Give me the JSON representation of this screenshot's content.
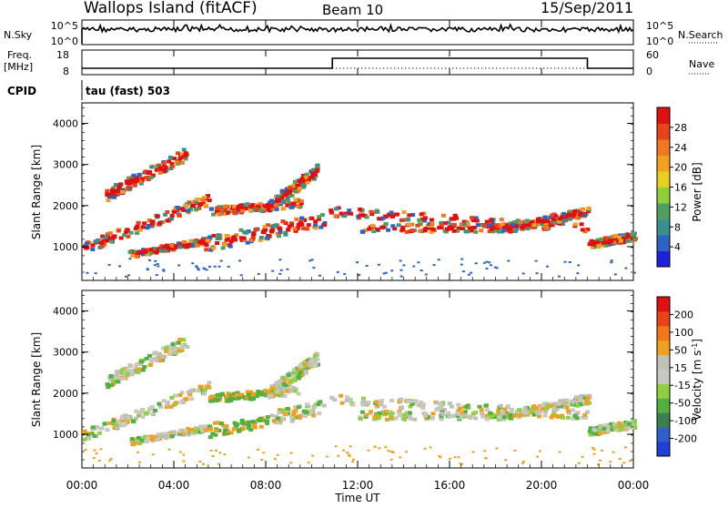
{
  "header": {
    "title": "Wallops Island (fitACF)",
    "beam": "Beam 10",
    "date": "15/Sep/2011"
  },
  "top_panels": {
    "nsky_label": "N.Sky",
    "nsky_ticks": [
      "10^5",
      "10^0"
    ],
    "nsearch_label": "N.Search",
    "nsearch_ticks": [
      "10^5",
      "10^0"
    ],
    "freq_label": "Freq.",
    "freq_unit": "[MHz]",
    "freq_ticks": [
      "18",
      "8"
    ],
    "nave_label": "Nave",
    "nave_ticks": [
      "60",
      "0"
    ],
    "cpid_label": "CPID",
    "cpid_value": "tau (fast) 503",
    "nave_step": {
      "start_hour": 10.9,
      "end_hour": 22.0
    }
  },
  "chart_data": [
    {
      "type": "heatmap",
      "panel": "power",
      "xlabel": "",
      "ylabel": "Slant Range [km]",
      "xlim": [
        0,
        24
      ],
      "ylim": [
        180,
        4500
      ],
      "yticks": [
        "1000",
        "2000",
        "3000",
        "4000"
      ],
      "colorbar": {
        "label": "Power [dB]",
        "ticks": [
          "4",
          "8",
          "12",
          "16",
          "20",
          "24",
          "28"
        ],
        "colors": [
          "#1f1fe0",
          "#2d63c4",
          "#3a8f8f",
          "#4f9f5f",
          "#8fd03a",
          "#e8d020",
          "#f2a020",
          "#f07820",
          "#e84418",
          "#e01010"
        ]
      }
    },
    {
      "type": "heatmap",
      "panel": "velocity",
      "xlabel": "Time UT",
      "ylabel": "Slant Range [km]",
      "xlim": [
        0,
        24
      ],
      "ylim": [
        180,
        4500
      ],
      "yticks": [
        "1000",
        "2000",
        "3000",
        "4000"
      ],
      "xticks": [
        "00:00",
        "04:00",
        "08:00",
        "12:00",
        "16:00",
        "20:00",
        "00:00"
      ],
      "colorbar": {
        "label": "Velocity [m s",
        "label_sup": "-1",
        "label_end": "]",
        "ticks": [
          "200",
          "100",
          "50",
          "15",
          "-15",
          "-50",
          "-100",
          "-200"
        ],
        "colors": [
          "#1f3fd8",
          "#2f5fc8",
          "#3c8050",
          "#52b040",
          "#8fd040",
          "#c8c8c0",
          "#c0c0b8",
          "#f0a020",
          "#f07818",
          "#e84418",
          "#e01010"
        ]
      }
    }
  ]
}
